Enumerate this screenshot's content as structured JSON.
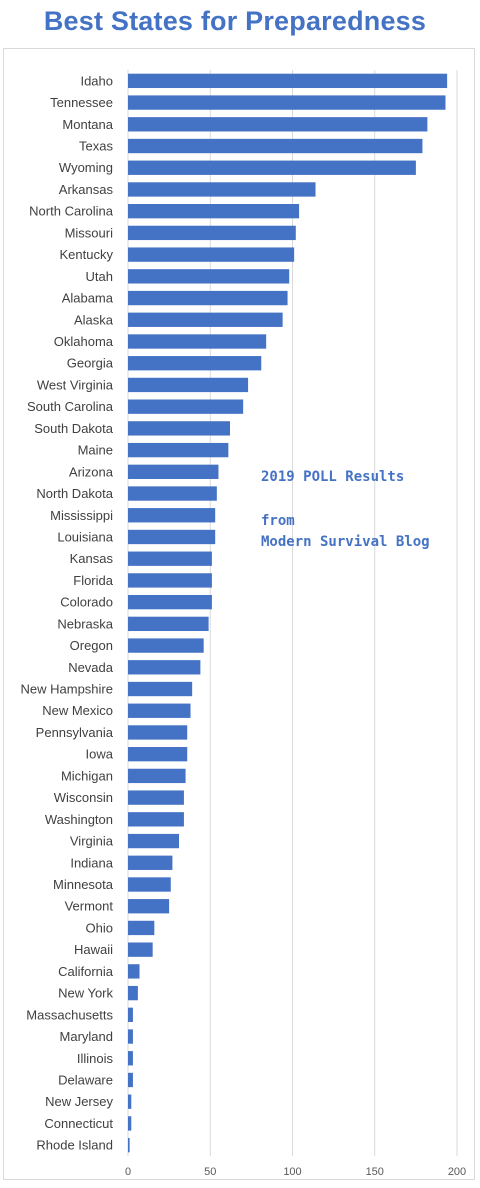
{
  "chart_data": {
    "type": "bar",
    "orientation": "horizontal",
    "title": "Best States for Preparedness",
    "categories": [
      "Idaho",
      "Tennessee",
      "Montana",
      "Texas",
      "Wyoming",
      "Arkansas",
      "North Carolina",
      "Missouri",
      "Kentucky",
      "Utah",
      "Alabama",
      "Alaska",
      "Oklahoma",
      "Georgia",
      "West Virginia",
      "South Carolina",
      "South Dakota",
      "Maine",
      "Arizona",
      "North Dakota",
      "Mississippi",
      "Louisiana",
      "Kansas",
      "Florida",
      "Colorado",
      "Nebraska",
      "Oregon",
      "Nevada",
      "New Hampshire",
      "New Mexico",
      "Pennsylvania",
      "Iowa",
      "Michigan",
      "Wisconsin",
      "Washington",
      "Virginia",
      "Indiana",
      "Minnesota",
      "Vermont",
      "Ohio",
      "Hawaii",
      "California",
      "New York",
      "Massachusetts",
      "Maryland",
      "Illinois",
      "Delaware",
      "New Jersey",
      "Connecticut",
      "Rhode Island"
    ],
    "values": [
      194,
      193,
      182,
      179,
      175,
      114,
      104,
      102,
      101,
      98,
      97,
      94,
      84,
      81,
      73,
      70,
      62,
      61,
      55,
      54,
      53,
      53,
      51,
      51,
      51,
      49,
      46,
      44,
      39,
      38,
      36,
      36,
      35,
      34,
      34,
      31,
      27,
      26,
      25,
      16,
      15,
      7,
      6,
      3,
      3,
      3,
      3,
      2,
      2,
      1
    ],
    "xlim": [
      0,
      200
    ],
    "xticks": [
      0,
      50,
      100,
      150,
      200
    ],
    "grid": true,
    "bar_color": "#4472c4",
    "annotations": [
      "2019 POLL Results",
      "from",
      "Modern Survival Blog"
    ]
  }
}
